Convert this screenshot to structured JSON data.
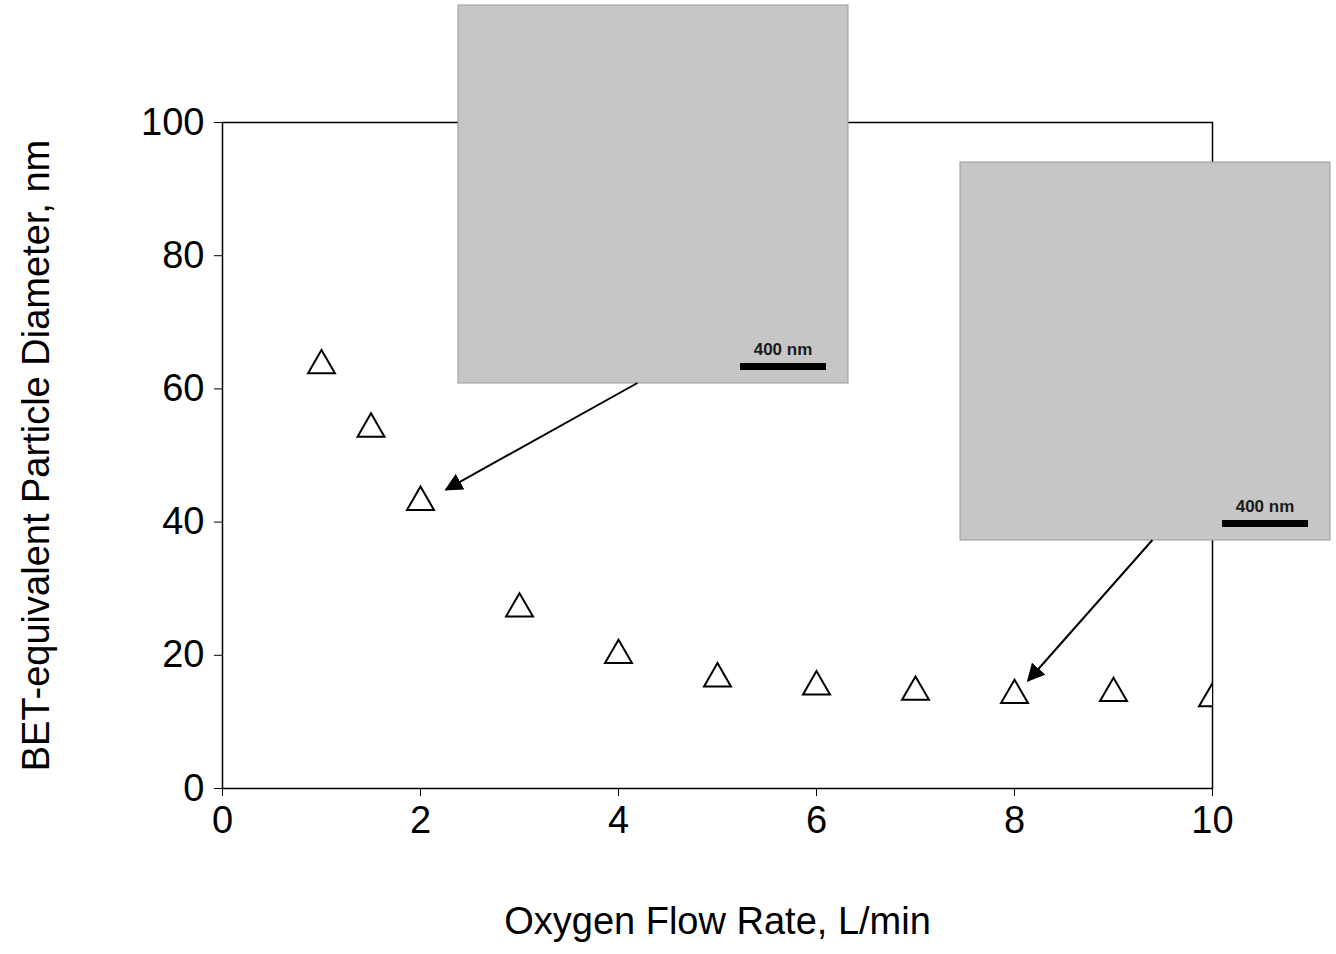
{
  "chart_data": {
    "type": "scatter",
    "x_label": "Oxygen Flow Rate, L/min",
    "y_label": "BET-equivalent Particle Diameter, nm",
    "x": [
      1,
      1.5,
      2,
      3,
      4,
      5,
      6,
      7,
      8,
      9,
      10
    ],
    "values": [
      63.5,
      54,
      43,
      27,
      20,
      16.5,
      15.3,
      14.5,
      14,
      14.3,
      13.5
    ],
    "marker": "triangle",
    "color": "#000000",
    "xlim": [
      0,
      10
    ],
    "xticks": [
      0,
      2,
      4,
      6,
      8,
      10
    ],
    "ylim": [
      0,
      100
    ],
    "yticks": [
      0,
      20,
      40,
      60,
      80,
      100
    ],
    "grid": false,
    "insets": [
      {
        "x": 2,
        "y": 43,
        "scale_bar": "400 nm"
      },
      {
        "x": 8,
        "y": 14,
        "scale_bar": "400 nm"
      }
    ]
  }
}
